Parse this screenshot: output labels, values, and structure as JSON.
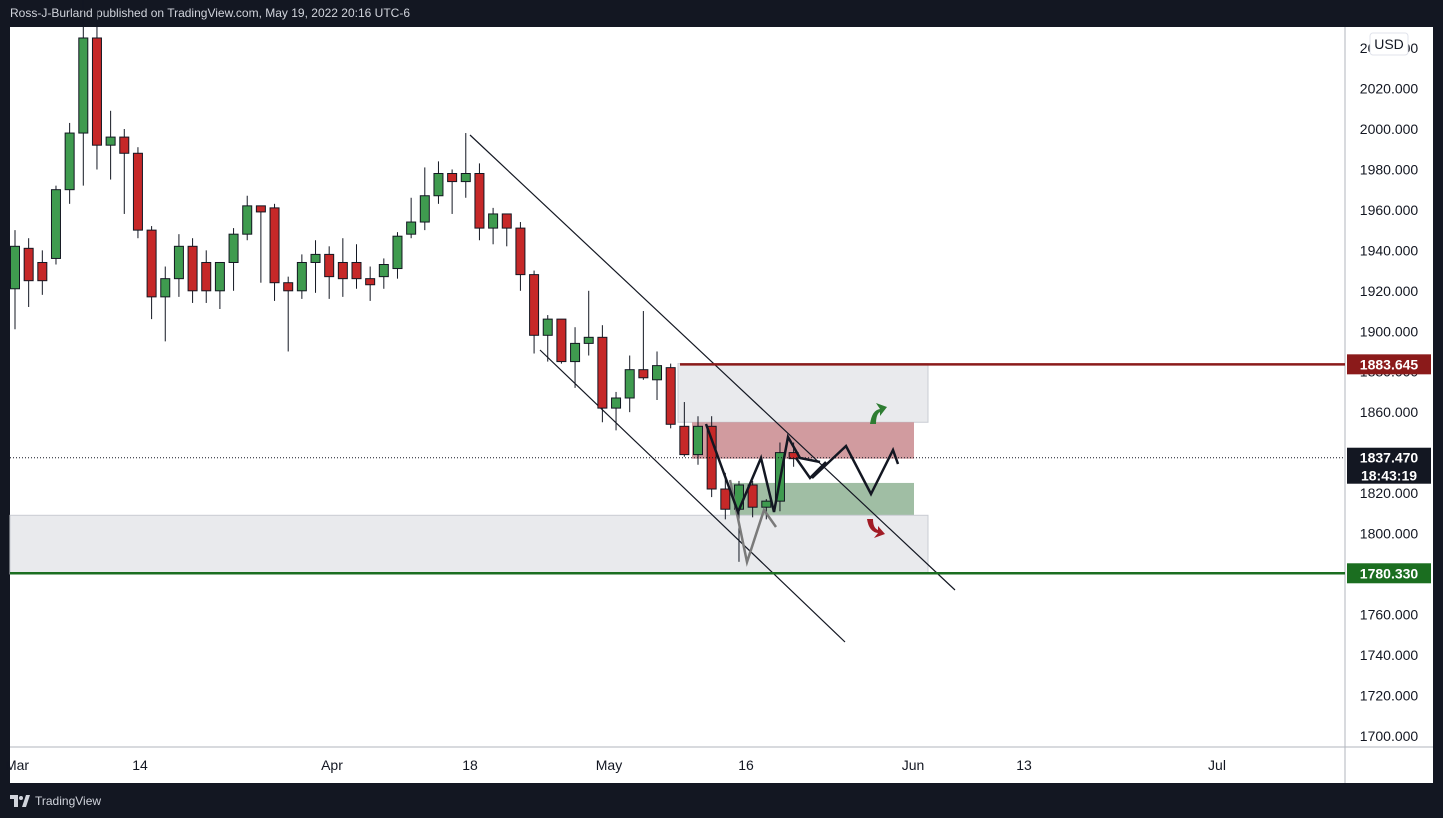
{
  "header": {
    "publisher_line": "Ross-J-Burland published on TradingView.com, May 19, 2022 20:16 UTC-6"
  },
  "footer": {
    "brand": "TradingView",
    "logo_icon": "tradingview-logo-icon"
  },
  "colors": {
    "up": "#3f9b4f",
    "down": "#c62828",
    "resistance_line": "#8b1a1a",
    "support_line": "#1b6e20",
    "zone_grey": "#dfe1e6",
    "zone_red": "#c98a8e",
    "zone_green": "#8fb394",
    "arrow_up": "#2e7d32",
    "arrow_down": "#a11b25"
  },
  "price_axis": {
    "currency": "USD",
    "ticks": [
      "2040.000",
      "2020.000",
      "2000.000",
      "1980.000",
      "1960.000",
      "1940.000",
      "1920.000",
      "1900.000",
      "1880.000",
      "1860.000",
      "1840.000",
      "1820.000",
      "1800.000",
      "1780.000",
      "1760.000",
      "1740.000",
      "1720.000",
      "1700.000"
    ]
  },
  "time_axis": {
    "labels": [
      "Mar",
      "14",
      "Apr",
      "18",
      "May",
      "16",
      "Jun",
      "13",
      "Jul"
    ]
  },
  "price_tags": {
    "resistance": "1883.645",
    "support": "1780.330",
    "last_price": "1837.470",
    "countdown": "18:43:19"
  },
  "chart_data": {
    "type": "candlestick",
    "symbol_currency": "USD",
    "ylim": [
      1690,
      2045
    ],
    "candles": [
      {
        "o": 1921,
        "h": 1950,
        "l": 1901,
        "c": 1942
      },
      {
        "o": 1941,
        "h": 1946,
        "l": 1912,
        "c": 1925
      },
      {
        "o": 1934,
        "h": 1940,
        "l": 1918,
        "c": 1925
      },
      {
        "o": 1936,
        "h": 1972,
        "l": 1933,
        "c": 1970
      },
      {
        "o": 1970,
        "h": 2003,
        "l": 1963,
        "c": 1998
      },
      {
        "o": 1998,
        "h": 2078,
        "l": 1972,
        "c": 2045
      },
      {
        "o": 2045,
        "h": 2060,
        "l": 1980,
        "c": 1992
      },
      {
        "o": 1992,
        "h": 2009,
        "l": 1975,
        "c": 1996
      },
      {
        "o": 1996,
        "h": 2000,
        "l": 1958,
        "c": 1988
      },
      {
        "o": 1988,
        "h": 1991,
        "l": 1946,
        "c": 1950
      },
      {
        "o": 1950,
        "h": 1952,
        "l": 1906,
        "c": 1917
      },
      {
        "o": 1917,
        "h": 1932,
        "l": 1895,
        "c": 1926
      },
      {
        "o": 1926,
        "h": 1948,
        "l": 1917,
        "c": 1942
      },
      {
        "o": 1942,
        "h": 1946,
        "l": 1914,
        "c": 1920
      },
      {
        "o": 1934,
        "h": 1940,
        "l": 1914,
        "c": 1920
      },
      {
        "o": 1920,
        "h": 1934,
        "l": 1911,
        "c": 1934
      },
      {
        "o": 1934,
        "h": 1951,
        "l": 1920,
        "c": 1948
      },
      {
        "o": 1948,
        "h": 1967,
        "l": 1945,
        "c": 1962
      },
      {
        "o": 1962,
        "h": 1962,
        "l": 1924,
        "c": 1959
      },
      {
        "o": 1961,
        "h": 1963,
        "l": 1915,
        "c": 1924
      },
      {
        "o": 1924,
        "h": 1927,
        "l": 1890,
        "c": 1920
      },
      {
        "o": 1920,
        "h": 1938,
        "l": 1916,
        "c": 1934
      },
      {
        "o": 1934,
        "h": 1945,
        "l": 1919,
        "c": 1938
      },
      {
        "o": 1938,
        "h": 1942,
        "l": 1916,
        "c": 1927
      },
      {
        "o": 1934,
        "h": 1946,
        "l": 1917,
        "c": 1926
      },
      {
        "o": 1934,
        "h": 1943,
        "l": 1921,
        "c": 1926
      },
      {
        "o": 1926,
        "h": 1932,
        "l": 1915,
        "c": 1923
      },
      {
        "o": 1927,
        "h": 1936,
        "l": 1921,
        "c": 1933
      },
      {
        "o": 1931,
        "h": 1949,
        "l": 1926,
        "c": 1947
      },
      {
        "o": 1948,
        "h": 1966,
        "l": 1946,
        "c": 1954
      },
      {
        "o": 1954,
        "h": 1981,
        "l": 1950,
        "c": 1967
      },
      {
        "o": 1967,
        "h": 1984,
        "l": 1963,
        "c": 1978
      },
      {
        "o": 1978,
        "h": 1980,
        "l": 1958,
        "c": 1974
      },
      {
        "o": 1974,
        "h": 1998,
        "l": 1966,
        "c": 1978
      },
      {
        "o": 1978,
        "h": 1983,
        "l": 1945,
        "c": 1951
      },
      {
        "o": 1951,
        "h": 1961,
        "l": 1943,
        "c": 1958
      },
      {
        "o": 1958,
        "h": 1958,
        "l": 1942,
        "c": 1951
      },
      {
        "o": 1951,
        "h": 1954,
        "l": 1920,
        "c": 1928
      },
      {
        "o": 1928,
        "h": 1930,
        "l": 1889,
        "c": 1898
      },
      {
        "o": 1898,
        "h": 1908,
        "l": 1885,
        "c": 1906
      },
      {
        "o": 1906,
        "h": 1906,
        "l": 1884,
        "c": 1885
      },
      {
        "o": 1885,
        "h": 1902,
        "l": 1872,
        "c": 1894
      },
      {
        "o": 1894,
        "h": 1920,
        "l": 1888,
        "c": 1897
      },
      {
        "o": 1897,
        "h": 1903,
        "l": 1855,
        "c": 1862
      },
      {
        "o": 1862,
        "h": 1870,
        "l": 1851,
        "c": 1867
      },
      {
        "o": 1867,
        "h": 1888,
        "l": 1860,
        "c": 1881
      },
      {
        "o": 1881,
        "h": 1910,
        "l": 1876,
        "c": 1877
      },
      {
        "o": 1876,
        "h": 1890,
        "l": 1866,
        "c": 1883
      },
      {
        "o": 1882,
        "h": 1884,
        "l": 1852,
        "c": 1854
      },
      {
        "o": 1853,
        "h": 1865,
        "l": 1838,
        "c": 1839
      },
      {
        "o": 1839,
        "h": 1858,
        "l": 1834,
        "c": 1853
      },
      {
        "o": 1853,
        "h": 1858,
        "l": 1818,
        "c": 1822
      },
      {
        "o": 1822,
        "h": 1830,
        "l": 1807,
        "c": 1812
      },
      {
        "o": 1812,
        "h": 1826,
        "l": 1786,
        "c": 1824
      },
      {
        "o": 1824,
        "h": 1826,
        "l": 1808,
        "c": 1813
      },
      {
        "o": 1813,
        "h": 1817,
        "l": 1807,
        "c": 1816
      },
      {
        "o": 1816,
        "h": 1845,
        "l": 1811,
        "c": 1840
      },
      {
        "o": 1840,
        "h": 1845,
        "l": 1833,
        "c": 1837
      }
    ],
    "horizontal_lines": [
      {
        "price": 1883.645,
        "label": "1883.645",
        "color": "#8b1a1a"
      },
      {
        "price": 1780.33,
        "label": "1780.330",
        "color": "#1b6e20"
      }
    ],
    "last_price": 1837.47,
    "countdown": "18:43:19",
    "zones": [
      {
        "from": 1855,
        "to": 1884,
        "color": "grey"
      },
      {
        "from": 1837,
        "to": 1855,
        "color": "red"
      },
      {
        "from": 1809,
        "to": 1825,
        "color": "green"
      },
      {
        "from": 1780,
        "to": 1809,
        "color": "grey"
      }
    ]
  }
}
